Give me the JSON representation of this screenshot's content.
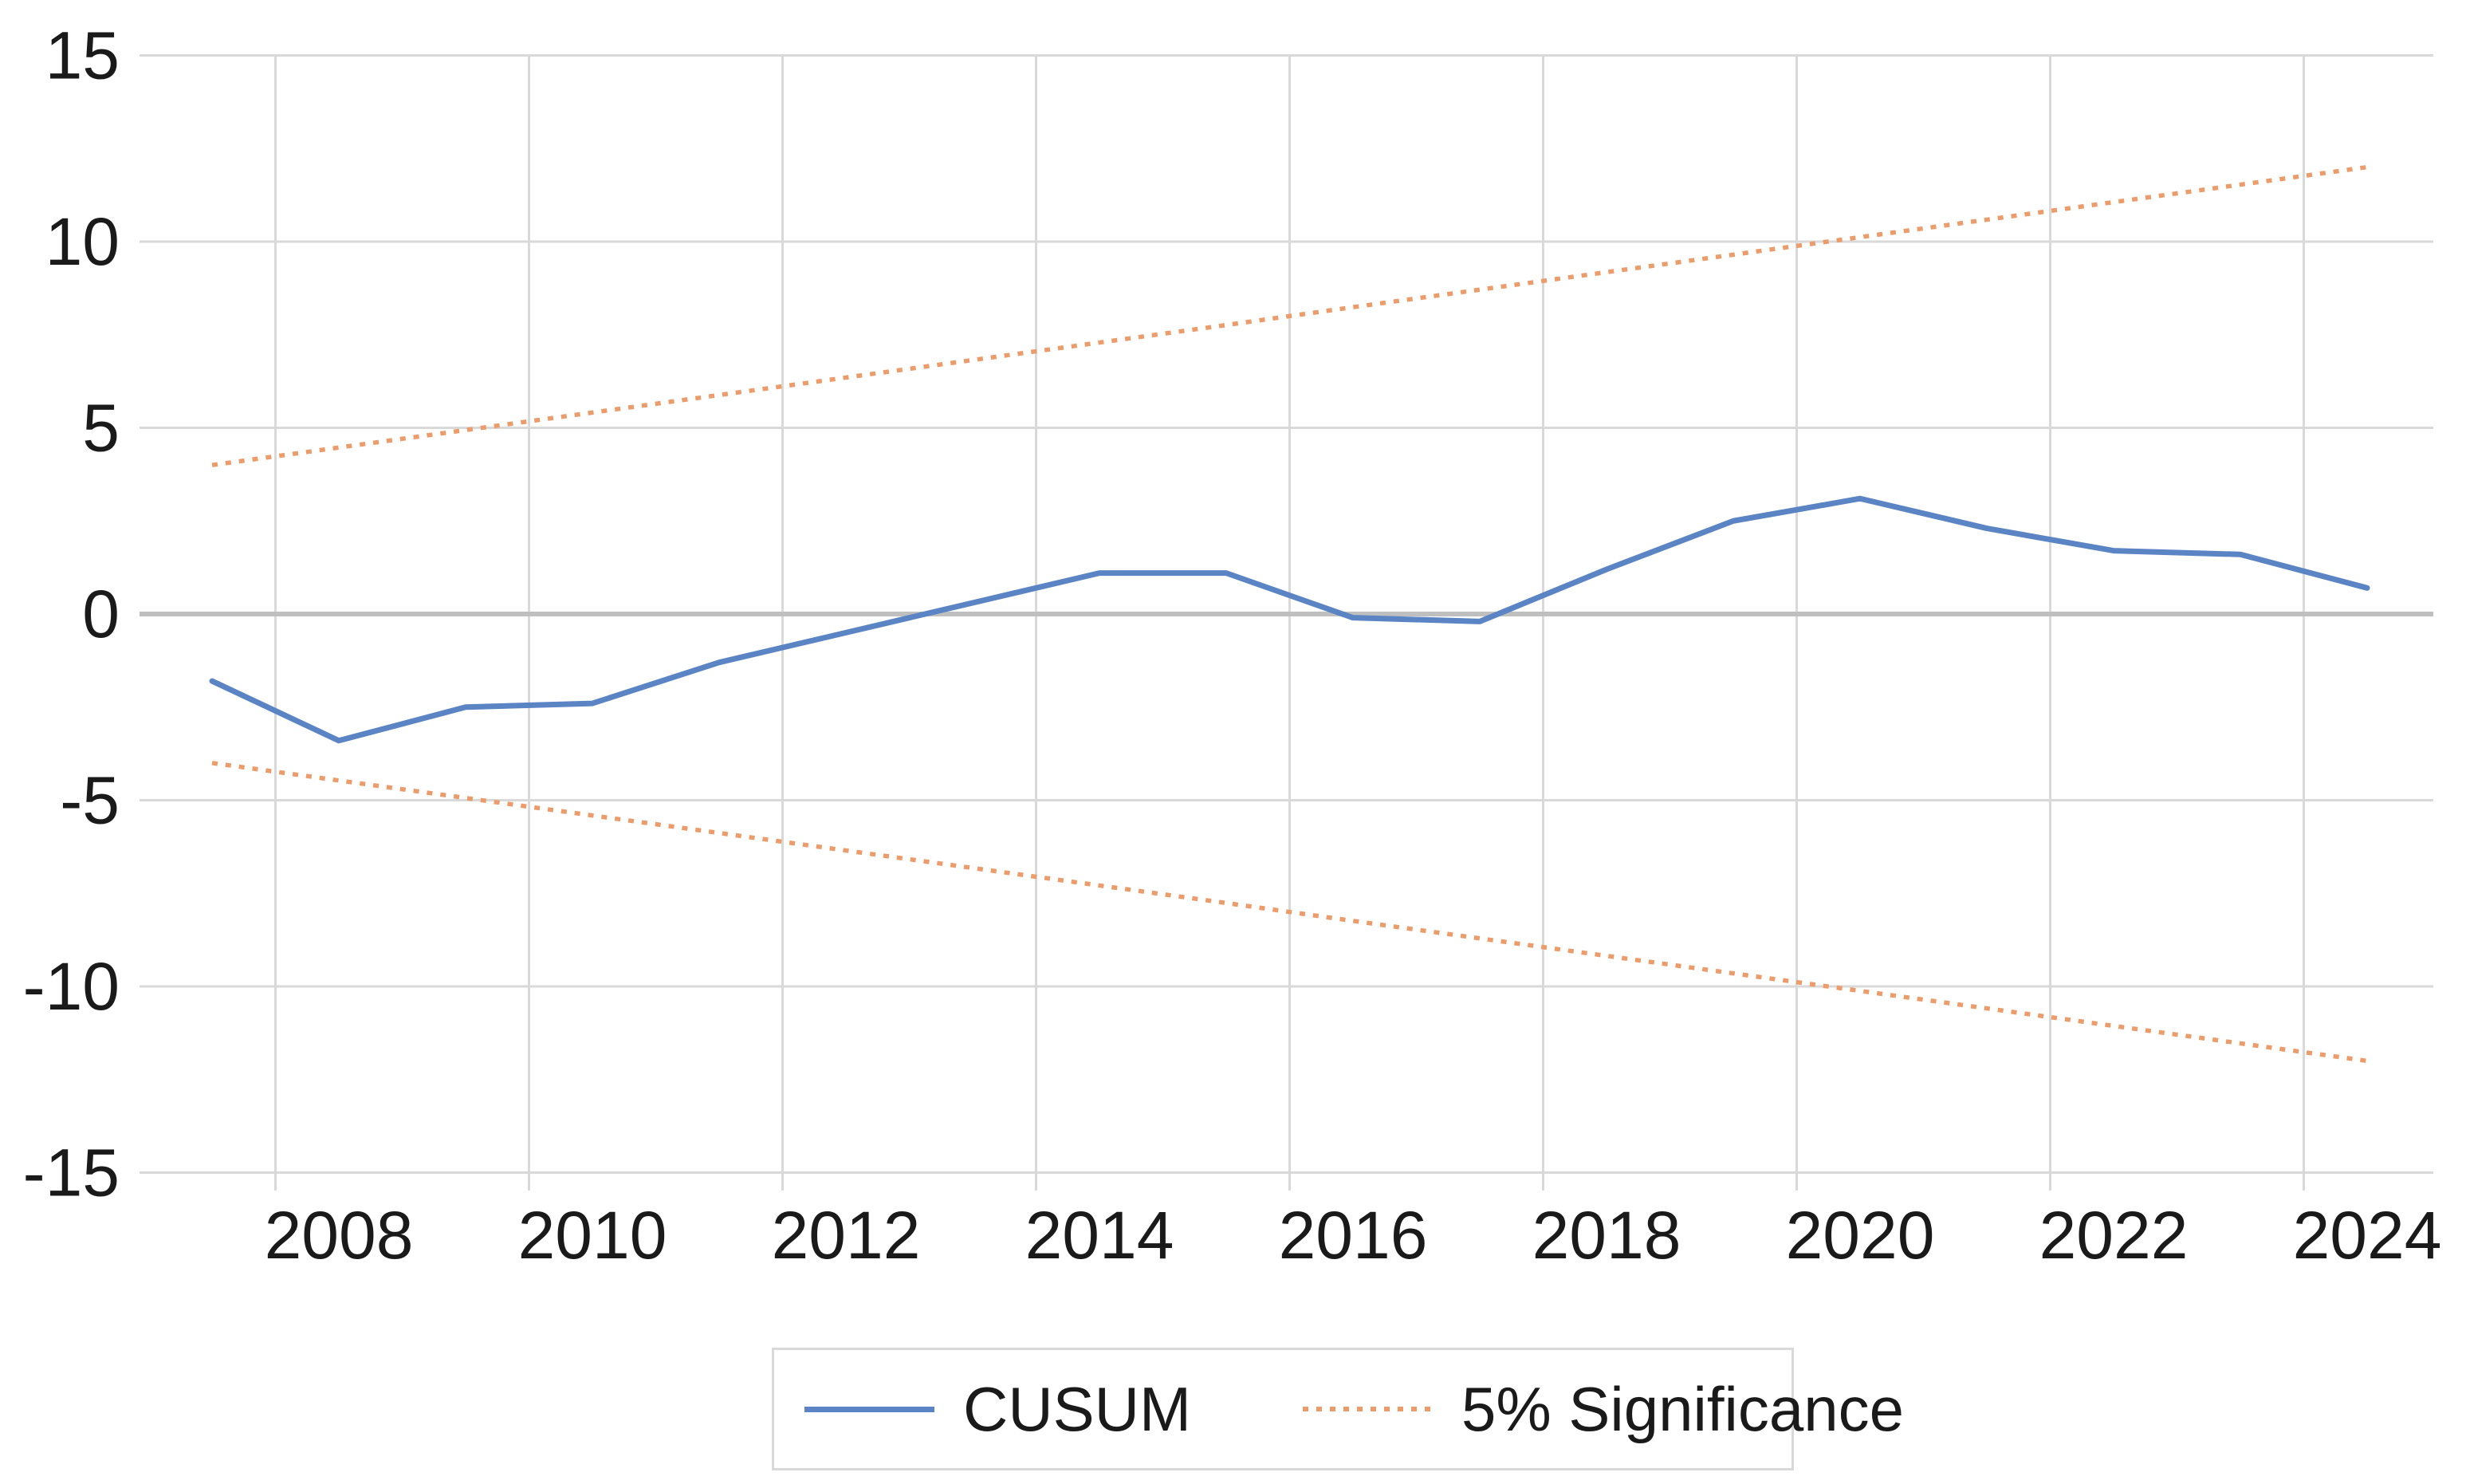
{
  "chart_data": {
    "type": "line",
    "title": "",
    "xlabel": "",
    "ylabel": "",
    "x": [
      2007,
      2008,
      2009,
      2010,
      2011,
      2012,
      2013,
      2014,
      2015,
      2016,
      2017,
      2018,
      2019,
      2020,
      2021,
      2022,
      2023,
      2024
    ],
    "x_tick_labels": [
      "2008",
      "2010",
      "2012",
      "2014",
      "2016",
      "2018",
      "2020",
      "2022",
      "2024"
    ],
    "x_tick_years": [
      2008,
      2010,
      2012,
      2014,
      2016,
      2018,
      2020,
      2022,
      2024
    ],
    "y_ticks": [
      15,
      10,
      5,
      0,
      -5,
      -10,
      -15
    ],
    "y_tick_labels": [
      "15",
      "10",
      "5",
      "0",
      "-5",
      "-10",
      "-15"
    ],
    "ylim": [
      -15,
      15
    ],
    "grid": true,
    "legend_position": "bottom",
    "series": [
      {
        "name": "CUSUM",
        "style": "solid",
        "color": "#5B84C4",
        "values": [
          -1.8,
          -3.4,
          -2.5,
          -2.4,
          -1.3,
          -0.5,
          0.3,
          1.1,
          1.1,
          -0.1,
          -0.2,
          1.2,
          2.5,
          3.1,
          2.3,
          1.7,
          1.6,
          0.7
        ]
      },
      {
        "name": "5% Significance (upper)",
        "style": "dotted",
        "color": "#EC9B6A",
        "values": [
          4.0,
          4.47,
          4.94,
          5.41,
          5.88,
          6.35,
          6.82,
          7.29,
          7.76,
          8.24,
          8.71,
          9.18,
          9.65,
          10.12,
          10.59,
          11.06,
          11.53,
          12.0
        ]
      },
      {
        "name": "5% Significance (lower)",
        "style": "dotted",
        "color": "#EC9B6A",
        "values": [
          -4.0,
          -4.47,
          -4.94,
          -5.41,
          -5.88,
          -6.35,
          -6.82,
          -7.29,
          -7.76,
          -8.24,
          -8.71,
          -9.18,
          -9.65,
          -10.12,
          -10.59,
          -11.06,
          -11.53,
          -12.0
        ]
      }
    ]
  },
  "legend": {
    "cusum_label": "CUSUM",
    "significance_label": "5% Significance"
  },
  "colors": {
    "cusum_line": "#5B84C4",
    "significance_line": "#EC9B6A",
    "gridline": "#D9D9D9",
    "zero_axis_line": "#BFBFBF",
    "axis_text": "#1a1a1a",
    "legend_border": "#D9D9D9",
    "background": "#ffffff"
  }
}
